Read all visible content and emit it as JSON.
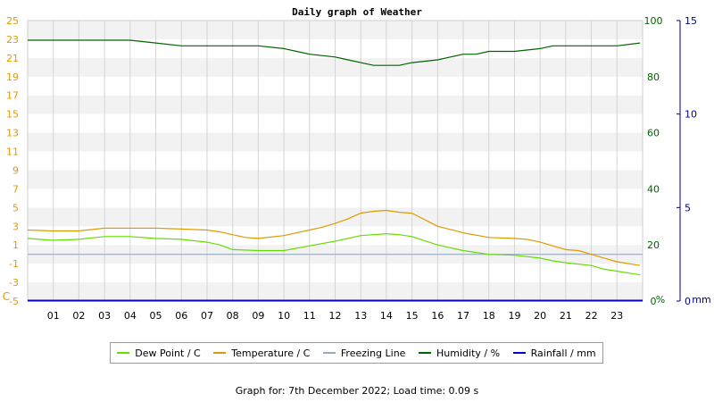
{
  "chart_data": {
    "type": "line",
    "title": "Daily graph of Weather",
    "x_ticks": [
      "01",
      "02",
      "03",
      "04",
      "05",
      "06",
      "07",
      "08",
      "09",
      "10",
      "11",
      "12",
      "13",
      "14",
      "15",
      "16",
      "17",
      "18",
      "19",
      "20",
      "21",
      "22",
      "23"
    ],
    "xlim": [
      0,
      24
    ],
    "y_left": {
      "unit_label": "C",
      "lim": [
        -5,
        25
      ],
      "ticks": [
        25,
        23,
        21,
        19,
        17,
        15,
        13,
        11,
        9,
        7,
        5,
        3,
        1,
        -1,
        -3,
        -5
      ],
      "color": "#e09a00"
    },
    "y_right_humidity": {
      "unit_label": "%",
      "lim": [
        0,
        100
      ],
      "ticks": [
        100,
        80,
        60,
        40,
        20,
        0
      ],
      "color": "#006400"
    },
    "y_right_rain": {
      "unit_label": "mm",
      "lim": [
        0,
        15
      ],
      "ticks": [
        15,
        10,
        5,
        0
      ],
      "color": "#000080"
    },
    "series": [
      {
        "name": "Dew Point / C",
        "axis": "left",
        "color": "#66dd00",
        "x": [
          0,
          1,
          2,
          3,
          4,
          5,
          6,
          7,
          7.5,
          8,
          9,
          10,
          11,
          12,
          13,
          13.5,
          14,
          14.5,
          15,
          16,
          17,
          18,
          19,
          20,
          20.5,
          21,
          22,
          22.5,
          23,
          23.9
        ],
        "y": [
          1.7,
          1.5,
          1.6,
          1.9,
          1.9,
          1.7,
          1.6,
          1.3,
          1.0,
          0.5,
          0.4,
          0.4,
          0.9,
          1.4,
          2.0,
          2.1,
          2.2,
          2.1,
          1.9,
          1.0,
          0.4,
          0.0,
          -0.1,
          -0.4,
          -0.7,
          -0.9,
          -1.2,
          -1.6,
          -1.8,
          -2.2
        ]
      },
      {
        "name": "Temperature / C",
        "axis": "left",
        "color": "#e09a00",
        "x": [
          0,
          1,
          2,
          3,
          4,
          5,
          6,
          7,
          7.5,
          8,
          8.5,
          9,
          10,
          11,
          11.5,
          12,
          12.5,
          13,
          13.5,
          14,
          14.5,
          15,
          16,
          17,
          18,
          19,
          19.5,
          20,
          20.5,
          21,
          21.5,
          22,
          22.5,
          23,
          23.9
        ],
        "y": [
          2.6,
          2.5,
          2.5,
          2.8,
          2.8,
          2.8,
          2.7,
          2.6,
          2.4,
          2.1,
          1.8,
          1.7,
          2.0,
          2.6,
          2.9,
          3.3,
          3.8,
          4.4,
          4.6,
          4.7,
          4.5,
          4.4,
          3.0,
          2.3,
          1.8,
          1.7,
          1.6,
          1.3,
          0.9,
          0.5,
          0.4,
          0.0,
          -0.4,
          -0.8,
          -1.2
        ]
      },
      {
        "name": "Freezing Line",
        "axis": "left",
        "color": "#99aac0",
        "x": [
          0,
          24
        ],
        "y": [
          0,
          0
        ]
      },
      {
        "name": "Humidity / %",
        "axis": "right_humidity",
        "color": "#006400",
        "x": [
          0,
          1,
          2,
          3,
          4,
          5,
          6,
          7,
          8,
          9,
          10,
          10.5,
          11,
          12,
          12.5,
          13,
          13.5,
          14,
          14.5,
          15,
          16,
          16.5,
          17,
          17.5,
          18,
          19,
          20,
          20.5,
          21,
          22,
          23,
          23.9
        ],
        "y": [
          93,
          93,
          93,
          93,
          93,
          92,
          91,
          91,
          91,
          91,
          90,
          89,
          88,
          87,
          86,
          85,
          84,
          84,
          84,
          85,
          86,
          87,
          88,
          88,
          89,
          89,
          90,
          91,
          91,
          91,
          91,
          92
        ]
      },
      {
        "name": "Rainfall / mm",
        "axis": "right_rain",
        "color": "#0000cc",
        "x": [
          0,
          24
        ],
        "y": [
          0,
          0
        ]
      }
    ],
    "legend_position": "bottom",
    "grid": true
  },
  "footer": {
    "text": "Graph for: 7th December 2022; Load time: 0.09 s"
  }
}
